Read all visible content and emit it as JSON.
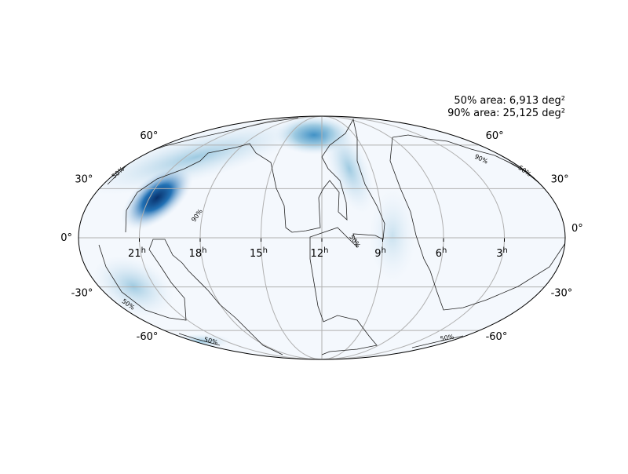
{
  "annotations": [
    "50% area: 6,913 deg²",
    "90% area: 25,125 deg²"
  ],
  "ra_ticks": [
    {
      "value": 21,
      "label": "21",
      "unit": "h"
    },
    {
      "value": 18,
      "label": "18",
      "unit": "h"
    },
    {
      "value": 15,
      "label": "15",
      "unit": "h"
    },
    {
      "value": 12,
      "label": "12",
      "unit": "h"
    },
    {
      "value": 9,
      "label": "9",
      "unit": "h"
    },
    {
      "value": 6,
      "label": "6",
      "unit": "h"
    },
    {
      "value": 3,
      "label": "3",
      "unit": "h"
    }
  ],
  "dec_ticks": [
    {
      "value": 60,
      "label": "60°"
    },
    {
      "value": 30,
      "label": "30°"
    },
    {
      "value": 0,
      "label": "0°"
    },
    {
      "value": -30,
      "label": "-30°"
    },
    {
      "value": -60,
      "label": "-60°"
    }
  ],
  "contour_labels": [
    "50%",
    "90%",
    "50%",
    "90%",
    "50%",
    "50%",
    "50%",
    "50%"
  ]
}
